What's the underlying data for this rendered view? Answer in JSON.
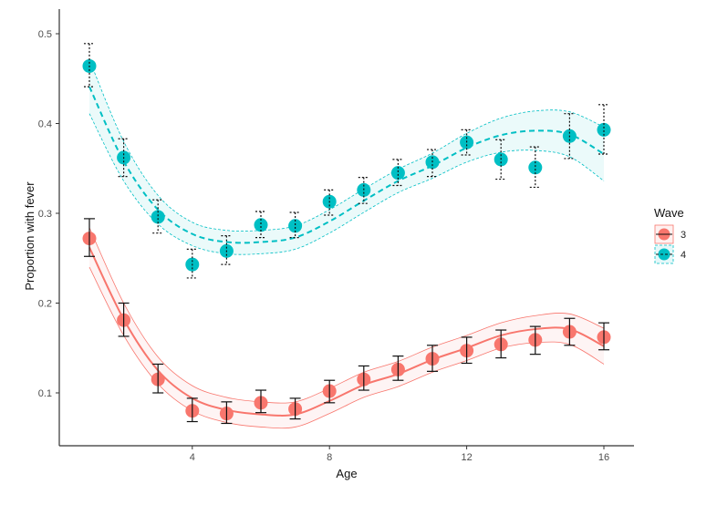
{
  "chart_data": {
    "type": "line",
    "title": "",
    "xlabel": "Age",
    "ylabel": "Proportion with fever",
    "xlim": [
      0.6,
      17
    ],
    "ylim": [
      0.05,
      0.51
    ],
    "x_ticks": [
      4,
      8,
      12,
      16
    ],
    "y_ticks": [
      0.1,
      0.2,
      0.3,
      0.4,
      0.5
    ],
    "y_tick_labels": [
      "0.1",
      "0.2",
      "0.3",
      "0.4",
      "0.5"
    ],
    "grid": false,
    "legend": {
      "title": "Wave",
      "placement": "right"
    },
    "x": [
      1,
      2,
      3,
      4,
      5,
      6,
      7,
      8,
      9,
      10,
      11,
      12,
      13,
      14,
      15,
      16
    ],
    "series": [
      {
        "name": "3",
        "color": "#F8766D",
        "errorbar_style": "solid",
        "fit_style": "solid",
        "values": [
          0.272,
          0.181,
          0.115,
          0.08,
          0.077,
          0.089,
          0.082,
          0.102,
          0.115,
          0.126,
          0.138,
          0.147,
          0.154,
          0.159,
          0.168,
          0.162
        ],
        "ci_low": [
          0.252,
          0.163,
          0.1,
          0.068,
          0.066,
          0.078,
          0.071,
          0.089,
          0.103,
          0.114,
          0.124,
          0.133,
          0.139,
          0.143,
          0.153,
          0.148
        ],
        "ci_high": [
          0.294,
          0.2,
          0.132,
          0.094,
          0.09,
          0.103,
          0.094,
          0.114,
          0.13,
          0.141,
          0.153,
          0.162,
          0.17,
          0.174,
          0.183,
          0.178
        ],
        "fit": [
          0.262,
          0.182,
          0.125,
          0.094,
          0.081,
          0.076,
          0.076,
          0.091,
          0.109,
          0.121,
          0.137,
          0.15,
          0.164,
          0.171,
          0.171,
          0.152
        ],
        "fit_band": [
          0.022,
          0.018,
          0.015,
          0.014,
          0.014,
          0.014,
          0.014,
          0.014,
          0.014,
          0.014,
          0.014,
          0.014,
          0.014,
          0.015,
          0.017,
          0.02
        ]
      },
      {
        "name": "4",
        "color": "#00BFC4",
        "errorbar_style": "dotted",
        "fit_style": "dashed",
        "values": [
          0.464,
          0.362,
          0.296,
          0.243,
          0.258,
          0.287,
          0.286,
          0.313,
          0.326,
          0.345,
          0.357,
          0.379,
          0.36,
          0.351,
          0.386,
          0.393
        ],
        "ci_low": [
          0.441,
          0.341,
          0.278,
          0.228,
          0.243,
          0.273,
          0.273,
          0.298,
          0.311,
          0.331,
          0.341,
          0.365,
          0.338,
          0.329,
          0.361,
          0.366
        ],
        "ci_high": [
          0.489,
          0.383,
          0.315,
          0.26,
          0.275,
          0.302,
          0.301,
          0.326,
          0.34,
          0.36,
          0.371,
          0.393,
          0.382,
          0.374,
          0.411,
          0.421
        ],
        "fit": [
          0.441,
          0.358,
          0.304,
          0.277,
          0.268,
          0.268,
          0.273,
          0.291,
          0.314,
          0.336,
          0.353,
          0.373,
          0.387,
          0.392,
          0.388,
          0.366
        ],
        "fit_band": [
          0.03,
          0.022,
          0.016,
          0.013,
          0.013,
          0.013,
          0.013,
          0.013,
          0.013,
          0.013,
          0.014,
          0.016,
          0.019,
          0.022,
          0.025,
          0.03
        ]
      }
    ]
  }
}
